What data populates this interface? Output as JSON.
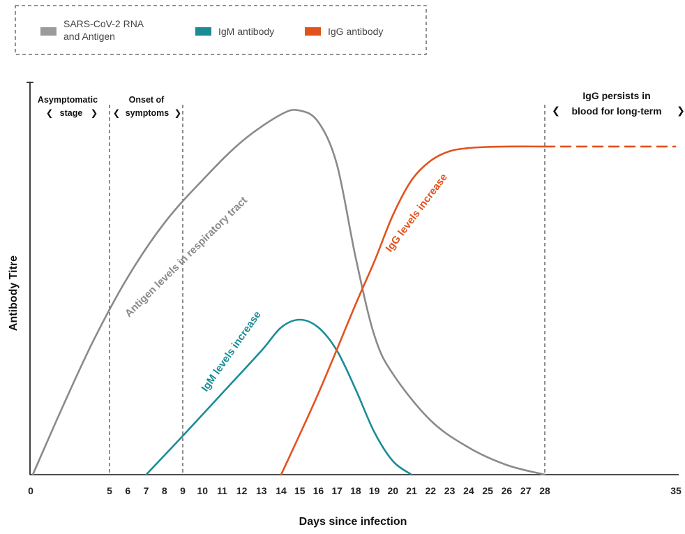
{
  "chart_data": {
    "type": "line",
    "title": "",
    "xlabel": "Days since infection",
    "ylabel": "Antibody Titre",
    "xlim": [
      0,
      35
    ],
    "ylim": [
      0,
      100
    ],
    "x_ticks": [
      0,
      5,
      6,
      7,
      8,
      9,
      10,
      11,
      12,
      13,
      14,
      15,
      16,
      17,
      18,
      19,
      20,
      21,
      22,
      23,
      24,
      25,
      26,
      27,
      28,
      35
    ],
    "x_tick_labels": [
      "0",
      "5",
      "6",
      "7",
      "8",
      "9",
      "10",
      "11",
      "12",
      "13",
      "14",
      "15",
      "16",
      "17",
      "18",
      "19",
      "20",
      "21",
      "22",
      "23",
      "24",
      "25",
      "26",
      "27",
      "28",
      "35"
    ],
    "legend": {
      "placement": "top-left",
      "entries": [
        {
          "line1": "SARS-CoV-2 RNA",
          "line2": "and Antigen",
          "color": "#9b9b9b"
        },
        {
          "line1": "IgM antibody",
          "line2": "",
          "color": "#1a8c96"
        },
        {
          "line1": "IgG antibody",
          "line2": "",
          "color": "#e3521d"
        }
      ]
    },
    "series": [
      {
        "key": "antigen",
        "color": "#8a8a8a",
        "label": "Antigen levels in respiratory tract",
        "x": [
          0,
          2,
          4,
          6,
          8,
          10,
          12,
          14,
          15,
          16,
          17,
          18,
          19,
          20,
          22,
          24,
          26,
          28
        ],
        "y": [
          0,
          18,
          35,
          51,
          65,
          76,
          86,
          93,
          94,
          91,
          80,
          56,
          36,
          26,
          14,
          7,
          2.5,
          0
        ]
      },
      {
        "key": "igm",
        "color": "#1a8c96",
        "label": "IgM levels increase",
        "x": [
          7,
          9,
          11,
          13,
          14,
          15,
          16,
          17,
          18,
          19,
          20,
          21
        ],
        "y": [
          0,
          10,
          21,
          32,
          38,
          40,
          38,
          32,
          22,
          11,
          3.5,
          0
        ]
      },
      {
        "key": "igg",
        "color": "#e3521d",
        "label": "IgG levels increase",
        "x": [
          14,
          16,
          18,
          19,
          20,
          21,
          22,
          23,
          24,
          25,
          26,
          28
        ],
        "y": [
          0,
          21,
          44,
          55,
          67,
          76,
          81,
          83.5,
          84.3,
          84.6,
          84.7,
          84.7
        ]
      },
      {
        "key": "igg-persist",
        "color": "#e3521d",
        "style": "dashed",
        "label": "",
        "x": [
          28,
          35
        ],
        "y": [
          84.7,
          84.7
        ]
      }
    ],
    "phases": [
      {
        "line1": "Asymptomatic",
        "line2": "stage",
        "x_start": 0,
        "x_end": 5
      },
      {
        "line1": "Onset of",
        "line2": "symptoms",
        "x_start": 5,
        "x_end": 9
      },
      {
        "line1": "IgG persists in",
        "line2": "blood for long-term",
        "x_start": 28,
        "x_end": 35
      }
    ],
    "vertical_markers_days": [
      5,
      9,
      28
    ],
    "grid": false
  },
  "icons": {
    "bracket_left": "bracket-left-icon",
    "bracket_right": "bracket-right-icon"
  }
}
